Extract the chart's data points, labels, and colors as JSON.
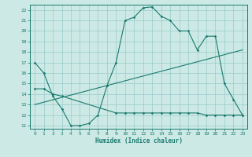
{
  "xlabel": "Humidex (Indice chaleur)",
  "xlim": [
    -0.5,
    23.5
  ],
  "ylim": [
    10.7,
    22.5
  ],
  "xticks": [
    0,
    1,
    2,
    3,
    4,
    5,
    6,
    7,
    8,
    9,
    10,
    11,
    12,
    13,
    14,
    15,
    16,
    17,
    18,
    19,
    20,
    21,
    22,
    23
  ],
  "yticks": [
    11,
    12,
    13,
    14,
    15,
    16,
    17,
    18,
    19,
    20,
    21,
    22
  ],
  "bg_color": "#cce9e5",
  "line_color": "#1a7a6e",
  "grid_color": "#99cccc",
  "line1_x": [
    0,
    1,
    2,
    3,
    4,
    5,
    6,
    7,
    8,
    9,
    10,
    11,
    12,
    13,
    14,
    15,
    16,
    17,
    18,
    19,
    20,
    21,
    22,
    23
  ],
  "line1_y": [
    17.0,
    16.0,
    13.8,
    12.6,
    11.0,
    11.0,
    11.2,
    12.0,
    14.8,
    17.0,
    21.0,
    21.3,
    22.2,
    22.3,
    21.4,
    21.0,
    20.0,
    20.0,
    18.2,
    19.5,
    19.5,
    15.0,
    13.5,
    12.0
  ],
  "line2_x": [
    0,
    1,
    2,
    3,
    9,
    10,
    11,
    12,
    13,
    14,
    15,
    16,
    17,
    18,
    19,
    20,
    21,
    22,
    23
  ],
  "line2_y": [
    14.5,
    14.5,
    14.0,
    13.8,
    12.2,
    12.2,
    12.2,
    12.2,
    12.2,
    12.2,
    12.2,
    12.2,
    12.2,
    12.2,
    12.0,
    12.0,
    12.0,
    12.0,
    12.0
  ],
  "line3_x": [
    0,
    23
  ],
  "line3_y": [
    13.0,
    18.2
  ]
}
